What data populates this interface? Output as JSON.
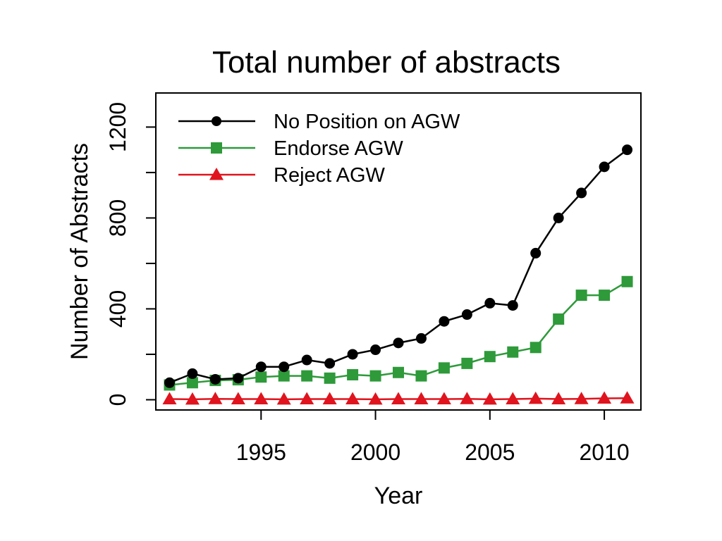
{
  "chart_data": {
    "type": "line",
    "title": "Total number of abstracts",
    "xlabel": "Year",
    "ylabel": "Number of Abstracts",
    "x": [
      1991,
      1992,
      1993,
      1994,
      1995,
      1996,
      1997,
      1998,
      1999,
      2000,
      2001,
      2002,
      2003,
      2004,
      2005,
      2006,
      2007,
      2008,
      2009,
      2010,
      2011
    ],
    "series": [
      {
        "name": "No Position on AGW",
        "color": "#000000",
        "marker": "circle",
        "values": [
          75,
          115,
          90,
          95,
          145,
          145,
          175,
          160,
          200,
          220,
          250,
          270,
          345,
          375,
          425,
          415,
          645,
          800,
          910,
          1025,
          1100
        ]
      },
      {
        "name": "Endorse AGW",
        "color": "#2e9a3a",
        "marker": "square",
        "values": [
          65,
          75,
          85,
          88,
          100,
          105,
          105,
          95,
          110,
          105,
          120,
          105,
          140,
          160,
          190,
          210,
          230,
          355,
          460,
          460,
          520
        ]
      },
      {
        "name": "Reject AGW",
        "color": "#e0141e",
        "marker": "triangle",
        "values": [
          3,
          2,
          4,
          3,
          3,
          2,
          3,
          3,
          3,
          2,
          3,
          3,
          3,
          4,
          2,
          3,
          5,
          3,
          4,
          6,
          7
        ]
      }
    ],
    "xticks": [
      1995,
      2000,
      2005,
      2010
    ],
    "yticks": [
      0,
      400,
      800,
      1200
    ],
    "xlim": [
      1990.4,
      2011.6
    ],
    "ylim": [
      -45,
      1350
    ],
    "grid": false,
    "legend_position": "top-left"
  }
}
